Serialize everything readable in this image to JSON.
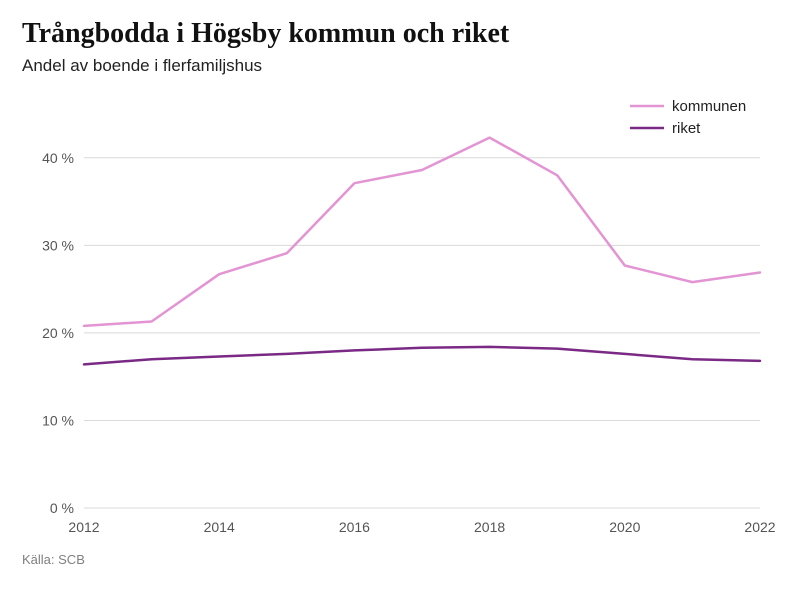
{
  "title": "Trångbodda i Högsby kommun och riket",
  "subtitle": "Andel av boende i flerfamiljshus",
  "source": "Källa: SCB",
  "chart": {
    "type": "line",
    "background_color": "#ffffff",
    "grid_color": "#d9d9d9",
    "axis_text_color": "#555555",
    "axis_fontsize": 14,
    "x": {
      "min": 2012,
      "max": 2022,
      "ticks": [
        2012,
        2014,
        2016,
        2018,
        2020,
        2022
      ]
    },
    "y": {
      "min": 0,
      "max": 45,
      "ticks": [
        0,
        10,
        20,
        30,
        40
      ],
      "tick_suffix": " %"
    },
    "legend": {
      "position": "top-right",
      "fontsize": 15,
      "items": [
        {
          "label": "kommunen",
          "color": "#e394d3"
        },
        {
          "label": "riket",
          "color": "#7a2a85"
        }
      ]
    },
    "series": [
      {
        "name": "kommunen",
        "color": "#e394d3",
        "width": 2.5,
        "years": [
          2012,
          2013,
          2014,
          2015,
          2016,
          2017,
          2018,
          2019,
          2020,
          2021,
          2022
        ],
        "values": [
          20.8,
          21.3,
          26.7,
          29.1,
          37.1,
          38.6,
          42.3,
          38.0,
          27.7,
          25.8,
          26.9
        ]
      },
      {
        "name": "riket",
        "color": "#7a2a85",
        "width": 2.5,
        "years": [
          2012,
          2013,
          2014,
          2015,
          2016,
          2017,
          2018,
          2019,
          2020,
          2021,
          2022
        ],
        "values": [
          16.4,
          17.0,
          17.3,
          17.6,
          18.0,
          18.3,
          18.4,
          18.2,
          17.6,
          17.0,
          16.8
        ]
      }
    ]
  }
}
